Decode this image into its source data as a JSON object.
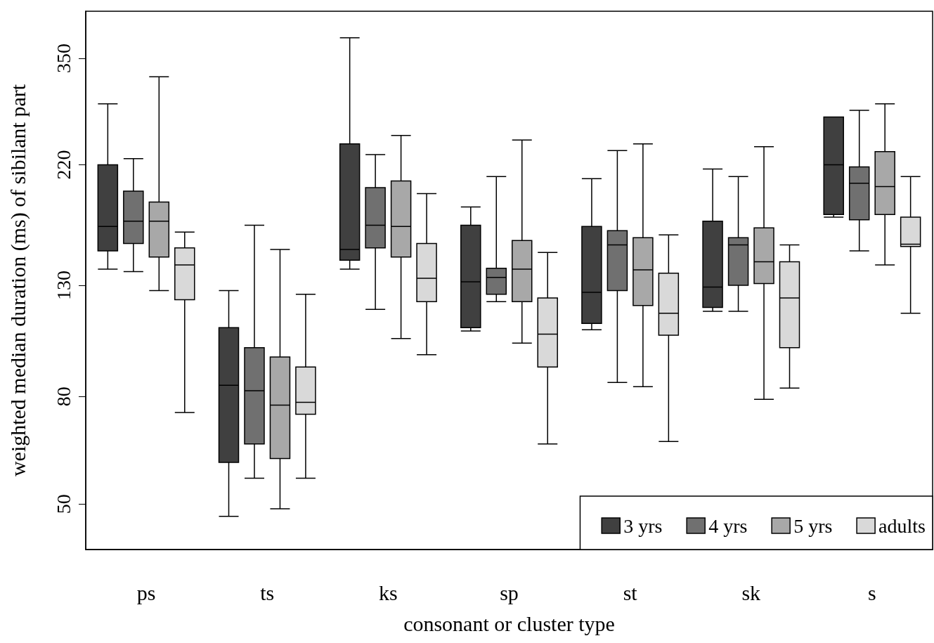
{
  "chart_data": {
    "type": "box",
    "xlabel": "consonant or cluster type",
    "ylabel": "weighted median duration (ms) of sibilant part",
    "categories": [
      "ps",
      "ts",
      "ks",
      "sp",
      "st",
      "sk",
      "s"
    ],
    "log": "y",
    "ylim": [
      41,
      430
    ],
    "yticks": [
      50,
      80,
      130,
      220,
      350
    ],
    "grid": false,
    "legend": "bottom right",
    "series": [
      {
        "name": "3 yrs",
        "color": "#404040",
        "boxes": [
          {
            "low": 139.5,
            "q1": 151,
            "median": 168,
            "q3": 220,
            "high": 287
          },
          {
            "low": 47.4,
            "q1": 60,
            "median": 84,
            "q3": 108,
            "high": 127
          },
          {
            "low": 139.5,
            "q1": 145,
            "median": 152,
            "q3": 241,
            "high": 383
          },
          {
            "low": 106.5,
            "q1": 108,
            "median": 132,
            "q3": 169,
            "high": 183
          },
          {
            "low": 107,
            "q1": 110,
            "median": 126,
            "q3": 168,
            "high": 207
          },
          {
            "low": 116,
            "q1": 118,
            "median": 129,
            "q3": 172,
            "high": 216
          },
          {
            "low": 175,
            "q1": 177,
            "median": 220,
            "q3": 271,
            "high": 271
          }
        ]
      },
      {
        "name": "4 yrs",
        "color": "#707070",
        "boxes": [
          {
            "low": 138,
            "q1": 156,
            "median": 172,
            "q3": 196,
            "high": 226
          },
          {
            "low": 56,
            "q1": 65,
            "median": 82,
            "q3": 99,
            "high": 169
          },
          {
            "low": 117,
            "q1": 153,
            "median": 169,
            "q3": 199,
            "high": 230
          },
          {
            "low": 121,
            "q1": 125,
            "median": 134.5,
            "q3": 140,
            "high": 209
          },
          {
            "low": 85,
            "q1": 127,
            "median": 155,
            "q3": 165,
            "high": 234
          },
          {
            "low": 116,
            "q1": 130,
            "median": 155,
            "q3": 160,
            "high": 209
          },
          {
            "low": 151,
            "q1": 173,
            "median": 203,
            "q3": 218,
            "high": 279
          }
        ]
      },
      {
        "name": "5 yrs",
        "color": "#a8a8a8",
        "boxes": [
          {
            "low": 127,
            "q1": 147,
            "median": 172,
            "q3": 187,
            "high": 323
          },
          {
            "low": 49,
            "q1": 61,
            "median": 77,
            "q3": 95,
            "high": 152
          },
          {
            "low": 103,
            "q1": 147,
            "median": 168,
            "q3": 205,
            "high": 250
          },
          {
            "low": 101,
            "q1": 121,
            "median": 139.5,
            "q3": 158,
            "high": 245
          },
          {
            "low": 83.5,
            "q1": 119,
            "median": 139,
            "q3": 160,
            "high": 241
          },
          {
            "low": 79,
            "q1": 131,
            "median": 144,
            "q3": 167,
            "high": 238
          },
          {
            "low": 142,
            "q1": 177,
            "median": 200,
            "q3": 233,
            "high": 287
          }
        ]
      },
      {
        "name": "adults",
        "color": "#d9d9d9",
        "boxes": [
          {
            "low": 74.6,
            "q1": 122,
            "median": 142,
            "q3": 153,
            "high": 164
          },
          {
            "low": 56,
            "q1": 74,
            "median": 78,
            "q3": 91,
            "high": 125
          },
          {
            "low": 96,
            "q1": 121,
            "median": 134,
            "q3": 156,
            "high": 194
          },
          {
            "low": 65,
            "q1": 91,
            "median": 105,
            "q3": 123,
            "high": 150
          },
          {
            "low": 65.7,
            "q1": 104.5,
            "median": 115,
            "q3": 137,
            "high": 162
          },
          {
            "low": 83,
            "q1": 99,
            "median": 123,
            "q3": 144,
            "high": 155
          },
          {
            "low": 115,
            "q1": 154,
            "median": 155.5,
            "q3": 175,
            "high": 209
          }
        ]
      }
    ]
  }
}
